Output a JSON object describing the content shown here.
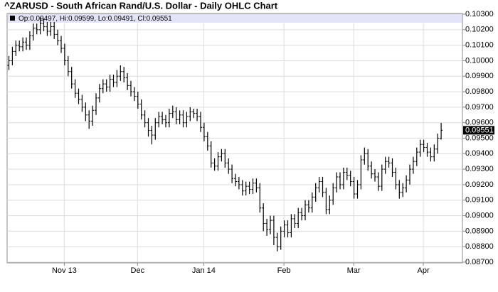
{
  "chart_data": {
    "type": "ohlc",
    "title": "^ZARUSD - South African Rand/U.S. Dollar - Daily OHLC Chart",
    "legend_text": "Op:0.09497, Hi:0.09599, Lo:0.09491, Cl:0.09551",
    "last_value_label": "0.09551",
    "color": "#000000",
    "grid": true,
    "ylim": [
      0.087,
      0.103
    ],
    "yticks": [
      {
        "value": 0.087,
        "label": "0.08700"
      },
      {
        "value": 0.088,
        "label": "0.08800"
      },
      {
        "value": 0.089,
        "label": "0.08900"
      },
      {
        "value": 0.09,
        "label": "0.09000"
      },
      {
        "value": 0.091,
        "label": "0.09100"
      },
      {
        "value": 0.092,
        "label": "0.09200"
      },
      {
        "value": 0.093,
        "label": "0.09300"
      },
      {
        "value": 0.094,
        "label": "0.09400"
      },
      {
        "value": 0.095,
        "label": "0.09500"
      },
      {
        "value": 0.096,
        "label": "0.09600"
      },
      {
        "value": 0.097,
        "label": "0.09700"
      },
      {
        "value": 0.098,
        "label": "0.09800"
      },
      {
        "value": 0.099,
        "label": "0.09900"
      },
      {
        "value": 0.1,
        "label": "0.10000"
      },
      {
        "value": 0.101,
        "label": "0.10100"
      },
      {
        "value": 0.102,
        "label": "0.10200"
      },
      {
        "value": 0.103,
        "label": "0.10300"
      }
    ],
    "categories": [
      null,
      null,
      null,
      null,
      null,
      null,
      null,
      null,
      null,
      null,
      null,
      null,
      null,
      null,
      null,
      null,
      "Nov 13",
      null,
      null,
      null,
      null,
      null,
      null,
      null,
      null,
      null,
      null,
      null,
      null,
      null,
      null,
      null,
      null,
      null,
      null,
      null,
      null,
      "Dec",
      null,
      null,
      null,
      null,
      null,
      null,
      null,
      null,
      null,
      null,
      null,
      null,
      null,
      null,
      null,
      null,
      null,
      null,
      "Jan 14",
      null,
      null,
      null,
      null,
      null,
      null,
      null,
      null,
      null,
      null,
      null,
      null,
      null,
      null,
      null,
      null,
      null,
      null,
      null,
      null,
      null,
      null,
      "Feb",
      null,
      null,
      null,
      null,
      null,
      null,
      null,
      null,
      null,
      null,
      null,
      null,
      null,
      null,
      null,
      null,
      null,
      null,
      null,
      "Mar",
      null,
      null,
      null,
      null,
      null,
      null,
      null,
      null,
      null,
      null,
      null,
      null,
      null,
      null,
      null,
      null,
      null,
      null,
      null,
      "Apr",
      null,
      null,
      null,
      null,
      null
    ],
    "open": [
      0.0997,
      0.1,
      0.1006,
      0.101,
      0.1009,
      0.1012,
      0.101,
      0.1016,
      0.1021,
      0.102,
      0.1024,
      0.1022,
      0.1019,
      0.1022,
      0.1017,
      0.1013,
      0.1008,
      0.1,
      0.0993,
      0.0985,
      0.0979,
      0.0975,
      0.097,
      0.0965,
      0.0961,
      0.0968,
      0.0976,
      0.0982,
      0.0985,
      0.0983,
      0.0988,
      0.0986,
      0.099,
      0.0993,
      0.0989,
      0.0984,
      0.098,
      0.0977,
      0.0972,
      0.0965,
      0.096,
      0.0955,
      0.0952,
      0.096,
      0.0964,
      0.0962,
      0.096,
      0.0966,
      0.0967,
      0.0962,
      0.0965,
      0.096,
      0.0964,
      0.0967,
      0.0966,
      0.0964,
      0.0957,
      0.0951,
      0.0945,
      0.0934,
      0.0932,
      0.0938,
      0.094,
      0.0934,
      0.093,
      0.0924,
      0.0922,
      0.092,
      0.0916,
      0.0919,
      0.0917,
      0.0921,
      0.0918,
      0.0905,
      0.0895,
      0.0891,
      0.0897,
      0.0886,
      0.088,
      0.089,
      0.0894,
      0.0889,
      0.0898,
      0.0895,
      0.0902,
      0.09,
      0.0907,
      0.0905,
      0.0912,
      0.0918,
      0.0922,
      0.0915,
      0.0904,
      0.091,
      0.0918,
      0.0925,
      0.092,
      0.0928,
      0.0926,
      0.0922,
      0.0914,
      0.092,
      0.0936,
      0.094,
      0.0932,
      0.0927,
      0.0925,
      0.0919,
      0.093,
      0.0935,
      0.0934,
      0.0928,
      0.092,
      0.0915,
      0.0918,
      0.0923,
      0.093,
      0.0935,
      0.0941,
      0.0946,
      0.0944,
      0.0941,
      0.0938,
      0.0943,
      0.09497
    ],
    "high": [
      0.1003,
      0.1009,
      0.1013,
      0.1013,
      0.1015,
      0.1015,
      0.1019,
      0.1024,
      0.1024,
      0.1028,
      0.1027,
      0.1025,
      0.1025,
      0.1025,
      0.102,
      0.1016,
      0.1011,
      0.1003,
      0.0996,
      0.0988,
      0.0982,
      0.0978,
      0.0973,
      0.0968,
      0.0971,
      0.0979,
      0.0985,
      0.0988,
      0.0988,
      0.0991,
      0.0991,
      0.0994,
      0.0997,
      0.0996,
      0.0992,
      0.0987,
      0.0983,
      0.098,
      0.0975,
      0.0968,
      0.0963,
      0.0958,
      0.0963,
      0.0967,
      0.0967,
      0.0965,
      0.0969,
      0.0971,
      0.097,
      0.0968,
      0.0968,
      0.0967,
      0.097,
      0.0969,
      0.0969,
      0.0967,
      0.096,
      0.0954,
      0.0948,
      0.0937,
      0.0941,
      0.0943,
      0.0943,
      0.0937,
      0.0933,
      0.0927,
      0.0925,
      0.0923,
      0.0922,
      0.0922,
      0.0924,
      0.0924,
      0.0921,
      0.0908,
      0.0898,
      0.09,
      0.09,
      0.0889,
      0.0893,
      0.0897,
      0.0897,
      0.0901,
      0.0901,
      0.0905,
      0.0905,
      0.091,
      0.091,
      0.0915,
      0.0921,
      0.0925,
      0.0925,
      0.0918,
      0.0913,
      0.0921,
      0.0928,
      0.0928,
      0.0931,
      0.0931,
      0.0929,
      0.0925,
      0.0923,
      0.0939,
      0.0944,
      0.0943,
      0.0935,
      0.093,
      0.0928,
      0.0933,
      0.0938,
      0.0938,
      0.0937,
      0.0931,
      0.0923,
      0.0921,
      0.0926,
      0.0933,
      0.0938,
      0.0944,
      0.0949,
      0.0949,
      0.0947,
      0.0944,
      0.0946,
      0.0953,
      0.09599
    ],
    "low": [
      0.0994,
      0.0997,
      0.1003,
      0.1006,
      0.1006,
      0.1007,
      0.1007,
      0.1013,
      0.1017,
      0.1017,
      0.1019,
      0.1016,
      0.1016,
      0.1014,
      0.101,
      0.1005,
      0.0997,
      0.099,
      0.0982,
      0.0976,
      0.0972,
      0.0967,
      0.0961,
      0.0956,
      0.0958,
      0.0965,
      0.0973,
      0.0979,
      0.098,
      0.098,
      0.0983,
      0.0983,
      0.0987,
      0.0986,
      0.0981,
      0.0977,
      0.0974,
      0.0969,
      0.0962,
      0.0957,
      0.0951,
      0.0946,
      0.0949,
      0.0957,
      0.0959,
      0.0957,
      0.0957,
      0.0963,
      0.0959,
      0.0959,
      0.0957,
      0.0957,
      0.0961,
      0.0963,
      0.0961,
      0.0954,
      0.0948,
      0.0942,
      0.0931,
      0.0929,
      0.0929,
      0.0935,
      0.0931,
      0.0927,
      0.0921,
      0.0919,
      0.0917,
      0.0913,
      0.0913,
      0.0914,
      0.0914,
      0.0915,
      0.0902,
      0.089,
      0.0887,
      0.0888,
      0.0881,
      0.0877,
      0.0878,
      0.0886,
      0.0886,
      0.0886,
      0.0892,
      0.0892,
      0.0897,
      0.0897,
      0.0902,
      0.0902,
      0.0909,
      0.0915,
      0.0912,
      0.0901,
      0.0901,
      0.0907,
      0.0915,
      0.0917,
      0.0917,
      0.0923,
      0.0919,
      0.0911,
      0.0911,
      0.0917,
      0.0933,
      0.0929,
      0.0924,
      0.0922,
      0.0916,
      0.0916,
      0.0927,
      0.0931,
      0.0925,
      0.0917,
      0.0911,
      0.0912,
      0.0915,
      0.092,
      0.0927,
      0.0932,
      0.0938,
      0.0941,
      0.0938,
      0.0935,
      0.0935,
      0.094,
      0.09491
    ],
    "close": [
      0.1,
      0.1006,
      0.101,
      0.1009,
      0.1012,
      0.101,
      0.1016,
      0.1021,
      0.102,
      0.1024,
      0.1022,
      0.1019,
      0.1022,
      0.1017,
      0.1013,
      0.1008,
      0.1,
      0.0993,
      0.0985,
      0.0979,
      0.0975,
      0.097,
      0.0965,
      0.0961,
      0.0968,
      0.0976,
      0.0982,
      0.0985,
      0.0983,
      0.0988,
      0.0986,
      0.099,
      0.0993,
      0.0989,
      0.0984,
      0.098,
      0.0977,
      0.0972,
      0.0965,
      0.096,
      0.0955,
      0.0952,
      0.096,
      0.0964,
      0.0962,
      0.096,
      0.0966,
      0.0967,
      0.0962,
      0.0965,
      0.096,
      0.0964,
      0.0967,
      0.0966,
      0.0964,
      0.0957,
      0.0951,
      0.0945,
      0.0934,
      0.0932,
      0.0938,
      0.094,
      0.0934,
      0.093,
      0.0924,
      0.0922,
      0.092,
      0.0916,
      0.0919,
      0.0917,
      0.0921,
      0.0918,
      0.0905,
      0.0895,
      0.0891,
      0.0897,
      0.0886,
      0.088,
      0.089,
      0.0894,
      0.0889,
      0.0898,
      0.0895,
      0.0902,
      0.09,
      0.0907,
      0.0905,
      0.0912,
      0.0918,
      0.0922,
      0.0915,
      0.0904,
      0.091,
      0.0918,
      0.0925,
      0.092,
      0.0928,
      0.0926,
      0.0922,
      0.0914,
      0.092,
      0.0936,
      0.094,
      0.0932,
      0.0927,
      0.0925,
      0.0919,
      0.093,
      0.0935,
      0.0934,
      0.0928,
      0.092,
      0.0915,
      0.0918,
      0.0923,
      0.093,
      0.0935,
      0.0941,
      0.0946,
      0.0944,
      0.0941,
      0.0938,
      0.0943,
      0.095,
      0.09551
    ]
  }
}
